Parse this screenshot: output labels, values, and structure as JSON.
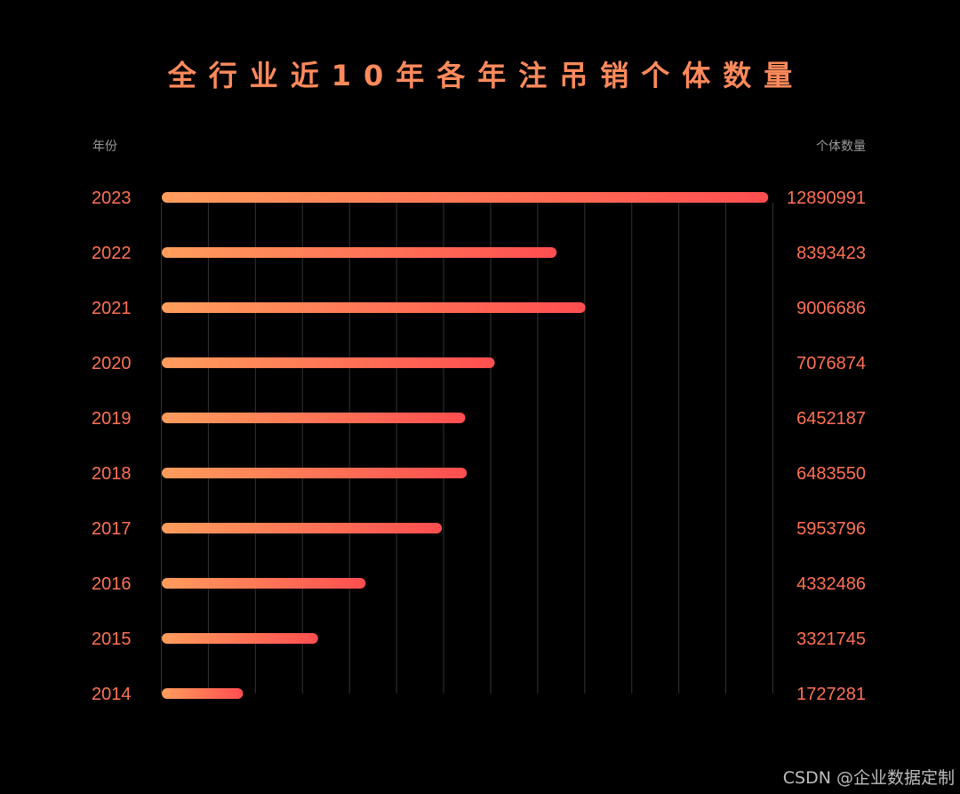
{
  "colors": {
    "background": "#000000",
    "accent": "#ff7255",
    "title": "#ff8a5c",
    "header_text": "#9a9a9a",
    "grid": "#333333",
    "bar_gradient_start": "#ff9d5c",
    "bar_gradient_end": "#ff4e50",
    "watermark": "#bdbdbd"
  },
  "watermark": "CSDN @企业数据定制",
  "chart_data": {
    "type": "bar",
    "orientation": "horizontal",
    "title": "全行业近10年各年注吊销个体数量",
    "category_header": "年份",
    "value_header": "个体数量",
    "categories": [
      "2023",
      "2022",
      "2021",
      "2020",
      "2019",
      "2018",
      "2017",
      "2016",
      "2015",
      "2014"
    ],
    "values": [
      12890991,
      8393423,
      9006686,
      7076874,
      6452187,
      6483550,
      5953796,
      4332486,
      3321745,
      1727281
    ],
    "xlim": [
      0,
      13000000
    ],
    "grid": true,
    "legend": "none"
  }
}
